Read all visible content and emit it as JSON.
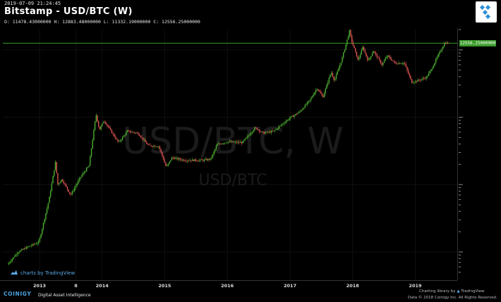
{
  "header": {
    "timestamp": "2019-07-09 21:24:45",
    "title": "Bitstamp - USD/BTC (W)",
    "ohlc": "O: 11478.43000000 H: 12883.48000000 L: 11332.19000000 C: 12556.25000000"
  },
  "watermark": {
    "main": "USD/BTC, W",
    "sub": "USD/BTC"
  },
  "price_badge": "12556.25000000",
  "branding": {
    "tradingview": "charts by TradingView",
    "coinigy": "COINIGY",
    "coinigy_tagline": "Digital Asset Intelligence",
    "charting_library_prefix": "Charting library by",
    "charting_library_brand": "TradingView",
    "data_credit": "Data © 2018 Coinigy Inc. All Rights Reserved."
  },
  "colors": {
    "background": "#000000",
    "up": "#4caf2f",
    "down": "#d9534f",
    "price_line": "#3a9b2a",
    "accent": "#4aa3df"
  },
  "chart_data": {
    "type": "candlestick",
    "title": "Bitstamp - USD/BTC (W)",
    "scale": "log",
    "x_tick_labels": [
      "2013",
      "8",
      "2014",
      "2015",
      "2016",
      "2017",
      "2018",
      "2019"
    ],
    "x_tick_dates": [
      "2013-01-01",
      "2013-08-01",
      "2014-01-01",
      "2015-01-01",
      "2016-01-01",
      "2017-01-01",
      "2018-01-01",
      "2019-01-01"
    ],
    "x_range": [
      "2012-06-01",
      "2019-08-01"
    ],
    "y_range": [
      4,
      20000
    ],
    "last_price": 12556.25,
    "path": [
      [
        "2012-07-01",
        6.5
      ],
      [
        "2012-09-01",
        10
      ],
      [
        "2012-11-01",
        12
      ],
      [
        "2013-01-01",
        14
      ],
      [
        "2013-03-01",
        60
      ],
      [
        "2013-04-08",
        220
      ],
      [
        "2013-04-20",
        100
      ],
      [
        "2013-05-15",
        120
      ],
      [
        "2013-07-05",
        70
      ],
      [
        "2013-09-01",
        130
      ],
      [
        "2013-10-20",
        190
      ],
      [
        "2013-11-30",
        1100
      ],
      [
        "2013-12-20",
        650
      ],
      [
        "2014-01-15",
        900
      ],
      [
        "2014-03-01",
        600
      ],
      [
        "2014-04-10",
        420
      ],
      [
        "2014-06-01",
        620
      ],
      [
        "2014-08-01",
        580
      ],
      [
        "2014-10-01",
        380
      ],
      [
        "2014-12-01",
        370
      ],
      [
        "2015-01-14",
        180
      ],
      [
        "2015-02-15",
        250
      ],
      [
        "2015-05-01",
        230
      ],
      [
        "2015-08-20",
        230
      ],
      [
        "2015-10-01",
        240
      ],
      [
        "2015-11-05",
        390
      ],
      [
        "2016-01-01",
        430
      ],
      [
        "2016-04-01",
        420
      ],
      [
        "2016-06-15",
        700
      ],
      [
        "2016-08-01",
        580
      ],
      [
        "2016-10-01",
        620
      ],
      [
        "2016-12-31",
        960
      ],
      [
        "2017-03-01",
        1200
      ],
      [
        "2017-05-01",
        1800
      ],
      [
        "2017-06-10",
        2700
      ],
      [
        "2017-07-15",
        2000
      ],
      [
        "2017-09-01",
        4700
      ],
      [
        "2017-09-20",
        3500
      ],
      [
        "2017-11-01",
        7000
      ],
      [
        "2017-12-17",
        19000
      ],
      [
        "2017-12-30",
        13500
      ],
      [
        "2018-02-05",
        7000
      ],
      [
        "2018-03-05",
        11000
      ],
      [
        "2018-04-05",
        6800
      ],
      [
        "2018-05-05",
        9700
      ],
      [
        "2018-06-25",
        6000
      ],
      [
        "2018-07-25",
        8200
      ],
      [
        "2018-09-10",
        6300
      ],
      [
        "2018-11-01",
        6400
      ],
      [
        "2018-12-15",
        3300
      ],
      [
        "2019-01-20",
        3500
      ],
      [
        "2019-03-10",
        3900
      ],
      [
        "2019-04-10",
        5200
      ],
      [
        "2019-05-15",
        8000
      ],
      [
        "2019-06-26",
        12800
      ],
      [
        "2019-07-08",
        12556
      ]
    ]
  }
}
